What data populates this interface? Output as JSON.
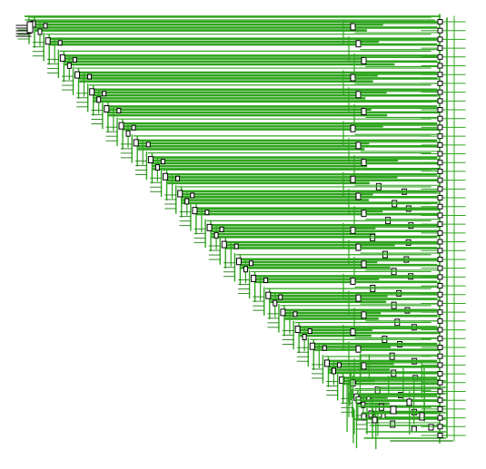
{
  "schematic": {
    "wire_color": "#2fa41e",
    "wire_color_dark": "#1f7f12",
    "block_fill": "#ffffff",
    "block_stroke": "#000000",
    "background": "#ffffff",
    "stages": 24,
    "output_pins": 48
  }
}
